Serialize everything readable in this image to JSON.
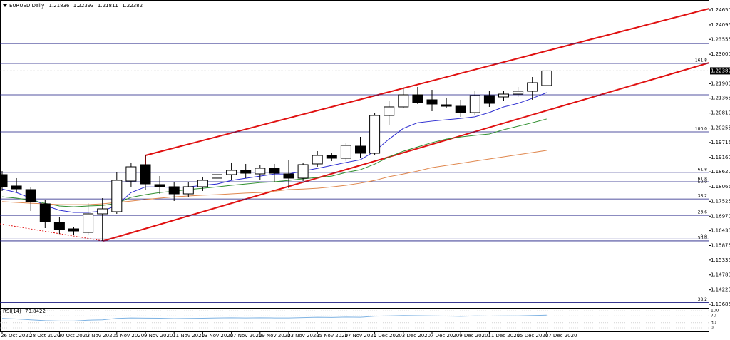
{
  "chart_data": {
    "type": "candlestick",
    "title": "EURUSD,Daily",
    "x": [
      "26 Oct 2020",
      null,
      "28 Oct 2020",
      null,
      "30 Oct 2020",
      null,
      "3 Nov 2020",
      null,
      "5 Nov 2020",
      null,
      "9 Nov 2020",
      null,
      "11 Nov 2020",
      null,
      "13 Nov 2020",
      null,
      "17 Nov 2020",
      null,
      "19 Nov 2020",
      null,
      "23 Nov 2020",
      null,
      "25 Nov 2020",
      null,
      "27 Nov 2020",
      null,
      "1 Dec 2020",
      null,
      "3 Dec 2020",
      null,
      "7 Dec 2020",
      null,
      "9 Dec 2020",
      null,
      "11 Dec 2020",
      null,
      "15 Dec 2020",
      null,
      "17 Dec 2020"
    ],
    "open": [
      1.18517,
      1.18093,
      1.1796,
      1.17429,
      1.16738,
      1.16499,
      1.16367,
      1.17057,
      1.17137,
      1.18278,
      1.18889,
      1.18146,
      1.18066,
      1.178,
      1.18066,
      1.18385,
      1.18517,
      1.18677,
      1.18544,
      1.18756,
      1.18544,
      1.18385,
      1.18916,
      1.19234,
      1.19128,
      1.19579,
      1.19314,
      1.20721,
      1.2104,
      1.21491,
      1.21305,
      1.21119,
      1.21066,
      1.20827,
      1.21464,
      1.21411,
      1.21517,
      1.21624,
      1.21836
    ],
    "high": [
      1.1865,
      1.18385,
      1.18066,
      1.17588,
      1.16924,
      1.16579,
      1.17455,
      1.17641,
      1.18597,
      1.18969,
      1.19234,
      1.18464,
      1.18225,
      1.18225,
      1.18438,
      1.18756,
      1.18969,
      1.18916,
      1.18862,
      1.18916,
      1.19048,
      1.18969,
      1.19393,
      1.1934,
      1.19712,
      1.19924,
      1.20827,
      1.21252,
      1.2173,
      1.21783,
      1.21677,
      1.21358,
      1.21305,
      1.21624,
      1.21624,
      1.21624,
      1.21783,
      1.22155,
      1.22393
    ],
    "low": [
      1.17907,
      1.17854,
      1.17163,
      1.16526,
      1.16314,
      1.16261,
      1.16261,
      1.16048,
      1.17057,
      1.18066,
      1.1796,
      1.178,
      1.17535,
      1.17694,
      1.17907,
      1.18172,
      1.18331,
      1.18385,
      1.18331,
      1.18225,
      1.18013,
      1.18278,
      1.18809,
      1.19022,
      1.19022,
      1.19128,
      1.19234,
      1.20376,
      1.20986,
      1.21146,
      1.2088,
      1.20986,
      1.20668,
      1.20721,
      1.2104,
      1.21252,
      1.21411,
      1.21305,
      1.21811
    ],
    "close": [
      1.18066,
      1.17986,
      1.17508,
      1.16765,
      1.16473,
      1.1642,
      1.17057,
      1.17243,
      1.18305,
      1.18809,
      1.18172,
      1.18066,
      1.178,
      1.18066,
      1.18305,
      1.18517,
      1.18677,
      1.1857,
      1.18756,
      1.1857,
      1.18385,
      1.18889,
      1.19234,
      1.19128,
      1.19606,
      1.19314,
      1.20721,
      1.2104,
      1.21491,
      1.21199,
      1.21146,
      1.21066,
      1.20827,
      1.21464,
      1.21172,
      1.21517,
      1.21624,
      1.21942,
      1.22382
    ],
    "up_color": "#ffffff",
    "down_color": "#000000",
    "series": [
      {
        "color": "#2b2bd0",
        "values": [
          1.1798,
          1.1785,
          1.1764,
          1.1737,
          1.1719,
          1.1711,
          1.1711,
          1.1716,
          1.1737,
          1.1785,
          1.1806,
          1.1806,
          1.1804,
          1.1806,
          1.1812,
          1.1817,
          1.183,
          1.1838,
          1.1846,
          1.1854,
          1.1854,
          1.1865,
          1.1875,
          1.1886,
          1.1897,
          1.1907,
          1.1939,
          1.1984,
          1.2024,
          1.2045,
          1.2051,
          1.2056,
          1.2061,
          1.2067,
          1.2083,
          1.2104,
          1.2117,
          1.2136,
          1.2157
        ]
      },
      {
        "color": "#2f8f2f",
        "values": [
          1.1769,
          1.1764,
          1.1756,
          1.1745,
          1.1735,
          1.1732,
          1.1735,
          1.1737,
          1.1745,
          1.1767,
          1.1777,
          1.1785,
          1.179,
          1.1796,
          1.1801,
          1.1806,
          1.1812,
          1.1817,
          1.1822,
          1.1825,
          1.183,
          1.1836,
          1.1841,
          1.1846,
          1.186,
          1.187,
          1.1891,
          1.1918,
          1.1939,
          1.1955,
          1.1971,
          1.1984,
          1.1992,
          1.1998,
          1.2003,
          1.2019,
          1.2032,
          1.2045,
          1.2059
        ]
      },
      {
        "color": "#e0884f",
        "values": [
          1.1751,
          1.1748,
          1.1745,
          1.1743,
          1.174,
          1.174,
          1.174,
          1.1743,
          1.1748,
          1.1753,
          1.1759,
          1.1764,
          1.1769,
          1.1772,
          1.1775,
          1.1777,
          1.178,
          1.1783,
          1.1785,
          1.179,
          1.1796,
          1.1798,
          1.1801,
          1.1806,
          1.1812,
          1.182,
          1.183,
          1.1844,
          1.1854,
          1.1865,
          1.1878,
          1.1886,
          1.1894,
          1.1902,
          1.191,
          1.1918,
          1.1926,
          1.1934,
          1.1942
        ]
      }
    ],
    "ylim": [
      1.13605,
      1.24969
    ],
    "yticks": [
      {
        "value": 1.2465,
        "label": "1.24650"
      },
      {
        "value": 1.24095,
        "label": "1.24095"
      },
      {
        "value": 1.23555,
        "label": "1.23555"
      },
      {
        "value": 1.23,
        "label": "1.23000"
      },
      {
        "value": 1.21905,
        "label": "1.21905"
      },
      {
        "value": 1.21365,
        "label": "1.21365"
      },
      {
        "value": 1.2081,
        "label": "1.20810"
      },
      {
        "value": 1.20255,
        "label": "1.20255"
      },
      {
        "value": 1.19715,
        "label": "1.19715"
      },
      {
        "value": 1.1916,
        "label": "1.19160"
      },
      {
        "value": 1.1862,
        "label": "1.18620"
      },
      {
        "value": 1.18065,
        "label": "1.18065"
      },
      {
        "value": 1.17525,
        "label": "1.17525"
      },
      {
        "value": 1.1697,
        "label": "1.16970"
      },
      {
        "value": 1.1643,
        "label": "1.16430"
      },
      {
        "value": 1.15875,
        "label": "1.15875"
      },
      {
        "value": 1.15335,
        "label": "1.15335"
      },
      {
        "value": 1.1478,
        "label": "1.14780"
      },
      {
        "value": 1.14225,
        "label": "1.14225"
      },
      {
        "value": 1.13685,
        "label": "1.13685"
      }
    ],
    "last_price": {
      "value": 1.22382,
      "label": "1.22382"
    },
    "levels": [
      {
        "value": 1.234,
        "label": null
      },
      {
        "value": 1.2266,
        "label": "161.8"
      },
      {
        "value": 1.2149,
        "label": null
      },
      {
        "value": 1.2011,
        "label": "100.0"
      },
      {
        "value": 1.186,
        "label": "61.8"
      },
      {
        "value": 1.1825,
        "label": "61.8"
      },
      {
        "value": 1.1813,
        "label": "50.0"
      },
      {
        "value": 1.1761,
        "label": "38.2"
      },
      {
        "value": 1.17,
        "label": "23.6"
      },
      {
        "value": 1.1612,
        "label": "0.0"
      },
      {
        "value": 1.1605,
        "label": "50.0"
      },
      {
        "value": 1.1375,
        "label": "38.2"
      }
    ],
    "indicator": {
      "label": "RSI(14)",
      "color": "#7fb3e3",
      "values": [
        55,
        52,
        47,
        42,
        40,
        40,
        45,
        47,
        55,
        58,
        57,
        56,
        54,
        55,
        56,
        58,
        59,
        58,
        59,
        58,
        58,
        60,
        62,
        61,
        63,
        62,
        68,
        70,
        72,
        71,
        70,
        69,
        67,
        70,
        69,
        70,
        70,
        72,
        73.8422
      ],
      "ylim": [
        0,
        100
      ],
      "yticks": [
        100,
        70,
        30,
        0
      ]
    }
  }
}
